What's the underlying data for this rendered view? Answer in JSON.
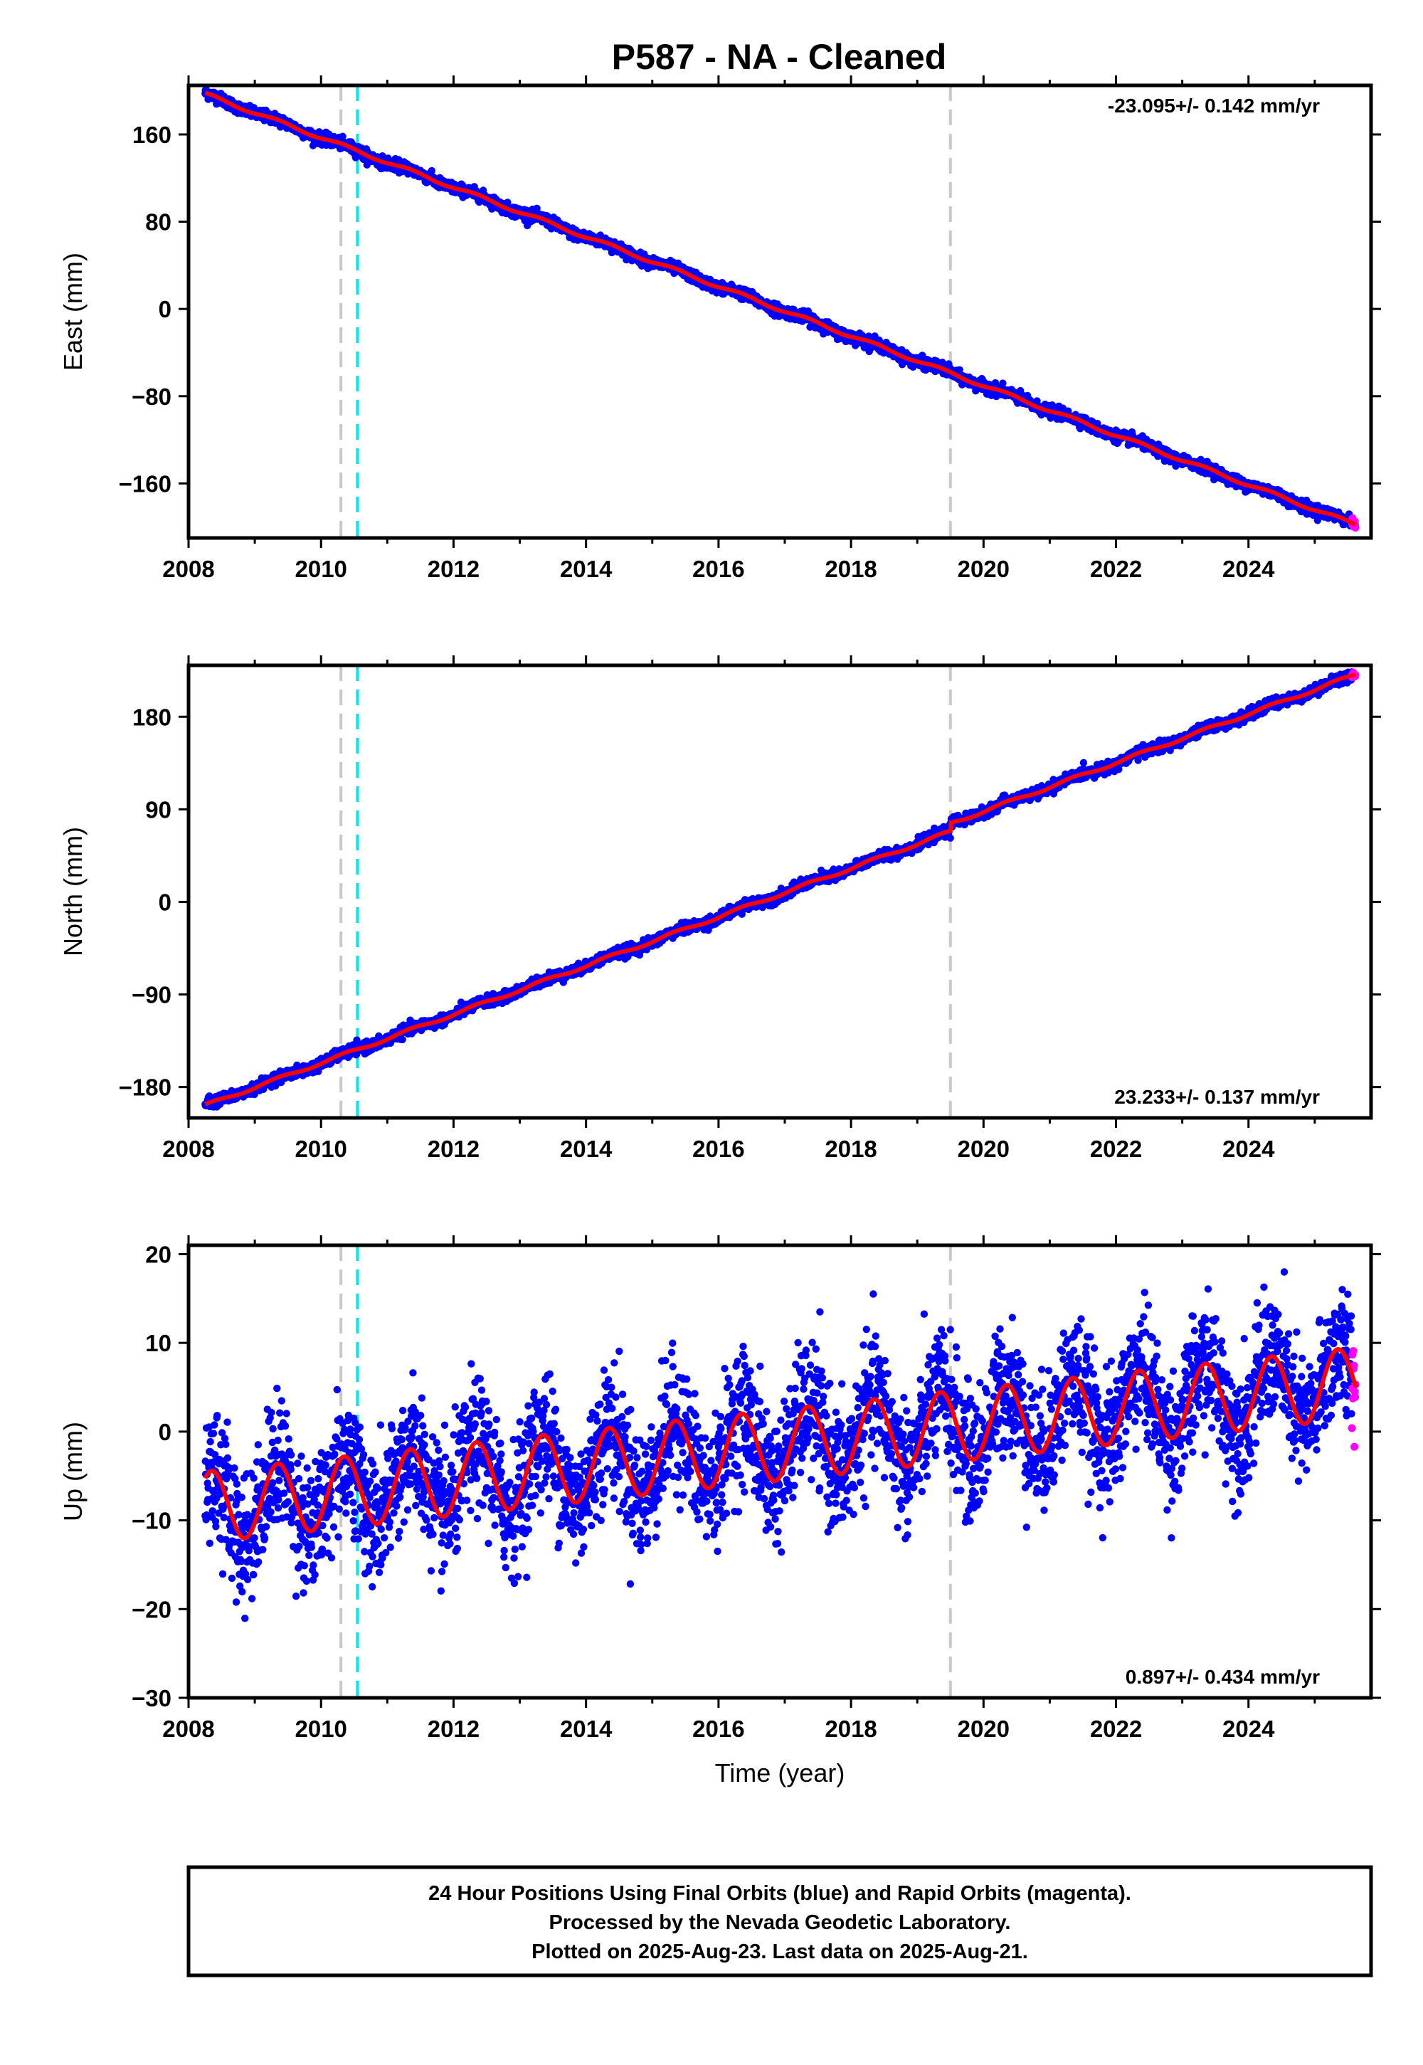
{
  "page": {
    "title": "P587  - NA - Cleaned",
    "footer_lines": [
      "24 Hour Positions Using Final Orbits (blue) and Rapid Orbits (magenta).",
      "Processed by the Nevada Geodetic Laboratory.",
      "Plotted on 2025-Aug-23. Last data on 2025-Aug-21."
    ]
  },
  "colors": {
    "final_orbits": "#0000ff",
    "rapid_orbits": "#ff00ff",
    "model": "#ff0000",
    "equipment_change": "#c8c8c8",
    "earthquake": "#00e5ee",
    "frame": "#000000"
  },
  "chart_data": [
    {
      "type": "scatter",
      "component": "east",
      "xlabel": "",
      "ylabel": "East (mm)",
      "xlim": [
        2008.0,
        2025.85
      ],
      "ylim": [
        -210,
        205
      ],
      "xticks": [
        2008,
        2010,
        2012,
        2014,
        2016,
        2018,
        2020,
        2022,
        2024
      ],
      "yticks": [
        -160,
        -80,
        0,
        80,
        160
      ],
      "ytick_labels": [
        "−160",
        "−80",
        "0",
        "80",
        "160"
      ],
      "rate_label": "-23.095+/- 0.142 mm/yr",
      "rate_position": "top-right",
      "rate_mm_per_yr": -23.095,
      "rate_sigma": 0.142,
      "start": [
        2008.25,
        197
      ],
      "end": [
        2025.62,
        -198
      ],
      "offsets": [],
      "seasonal_amplitude": 1.5,
      "noise": 2.5,
      "equipment_changes": [
        2010.3,
        2019.5
      ],
      "earthquakes": [
        2010.55
      ]
    },
    {
      "type": "scatter",
      "component": "north",
      "xlabel": "",
      "ylabel": "North (mm)",
      "xlim": [
        2008.0,
        2025.85
      ],
      "ylim": [
        -210,
        230
      ],
      "xticks": [
        2008,
        2010,
        2012,
        2014,
        2016,
        2018,
        2020,
        2022,
        2024
      ],
      "yticks": [
        -180,
        -90,
        0,
        90,
        180
      ],
      "ytick_labels": [
        "−180",
        "−90",
        "0",
        "90",
        "180"
      ],
      "rate_label": "23.233+/- 0.137 mm/yr",
      "rate_position": "bottom-right",
      "rate_mm_per_yr": 23.233,
      "rate_sigma": 0.137,
      "start": [
        2008.25,
        -198
      ],
      "end": [
        2025.62,
        221
      ],
      "offsets": [
        [
          2019.5,
          8
        ]
      ],
      "seasonal_amplitude": 1.5,
      "noise": 2.5,
      "equipment_changes": [
        2010.3,
        2019.5
      ],
      "earthquakes": [
        2010.55
      ]
    },
    {
      "type": "scatter",
      "component": "up",
      "xlabel": "Time (year)",
      "ylabel": "Up (mm)",
      "xlim": [
        2008.0,
        2025.85
      ],
      "ylim": [
        -30,
        21
      ],
      "xticks": [
        2008,
        2010,
        2012,
        2014,
        2016,
        2018,
        2020,
        2022,
        2024
      ],
      "yticks": [
        -30,
        -20,
        -10,
        0,
        10,
        20
      ],
      "ytick_labels": [
        "−30",
        "−20",
        "−10",
        "0",
        "10",
        "20"
      ],
      "rate_label": "0.897+/- 0.434 mm/yr",
      "rate_position": "bottom-right",
      "rate_mm_per_yr": 0.897,
      "rate_sigma": 0.434,
      "start": [
        2008.25,
        -8.5
      ],
      "end": [
        2025.62,
        5.5
      ],
      "offsets": [],
      "seasonal_amplitude": 4.0,
      "noise": 3.6,
      "equipment_changes": [
        2010.3,
        2019.5
      ],
      "earthquakes": [
        2010.55
      ]
    }
  ]
}
